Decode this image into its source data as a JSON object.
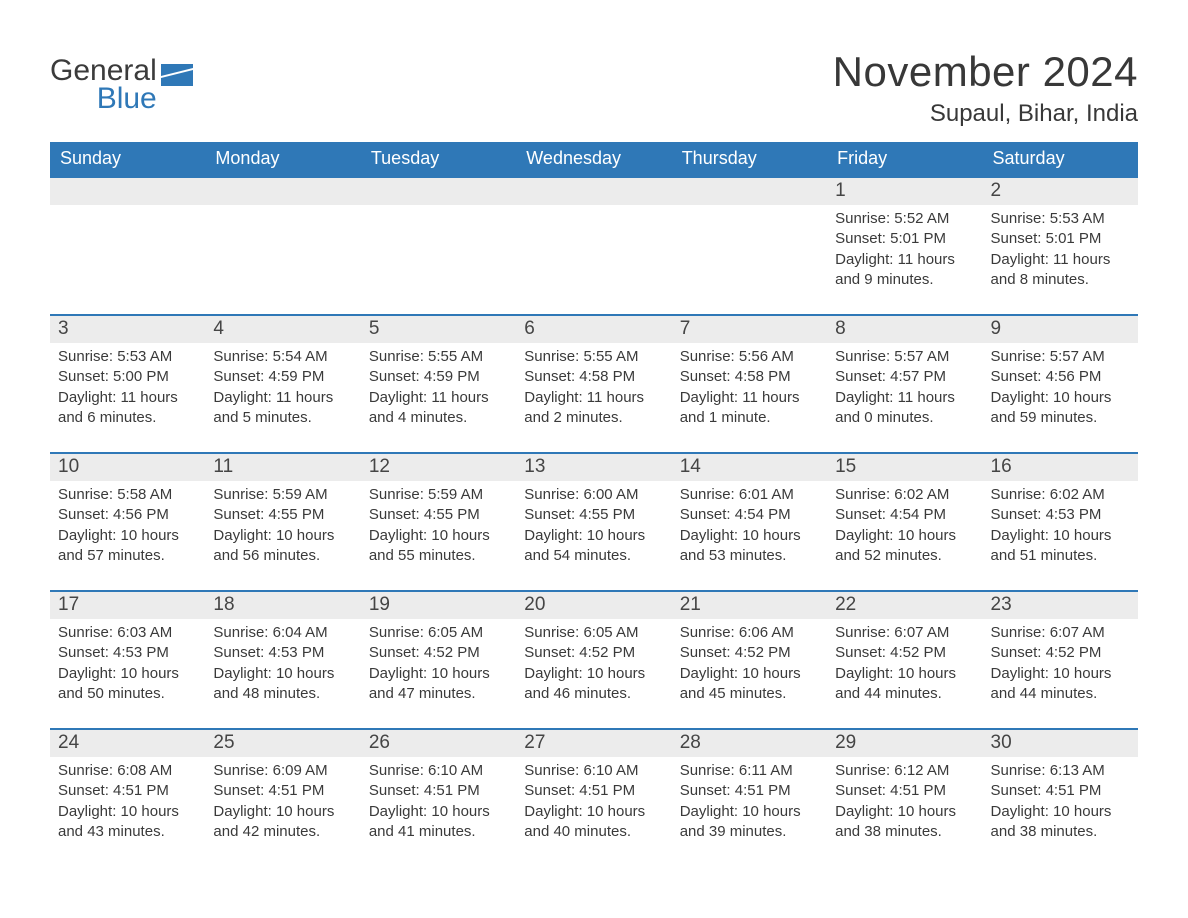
{
  "logo": {
    "word1": "General",
    "word2": "Blue"
  },
  "title": "November 2024",
  "location": "Supaul, Bihar, India",
  "colors": {
    "header_bg": "#2f78b7",
    "header_text": "#ffffff",
    "daybar_bg": "#ececec",
    "daybar_border": "#2f78b7",
    "text": "#3a3a3a",
    "logo_gray": "#3b3b3b",
    "logo_blue": "#2f78b7",
    "page_bg": "#ffffff"
  },
  "weekdays": [
    "Sunday",
    "Monday",
    "Tuesday",
    "Wednesday",
    "Thursday",
    "Friday",
    "Saturday"
  ],
  "weeks": [
    [
      null,
      null,
      null,
      null,
      null,
      {
        "n": "1",
        "sunrise": "5:52 AM",
        "sunset": "5:01 PM",
        "dl1": "Daylight: 11 hours",
        "dl2": "and 9 minutes."
      },
      {
        "n": "2",
        "sunrise": "5:53 AM",
        "sunset": "5:01 PM",
        "dl1": "Daylight: 11 hours",
        "dl2": "and 8 minutes."
      }
    ],
    [
      {
        "n": "3",
        "sunrise": "5:53 AM",
        "sunset": "5:00 PM",
        "dl1": "Daylight: 11 hours",
        "dl2": "and 6 minutes."
      },
      {
        "n": "4",
        "sunrise": "5:54 AM",
        "sunset": "4:59 PM",
        "dl1": "Daylight: 11 hours",
        "dl2": "and 5 minutes."
      },
      {
        "n": "5",
        "sunrise": "5:55 AM",
        "sunset": "4:59 PM",
        "dl1": "Daylight: 11 hours",
        "dl2": "and 4 minutes."
      },
      {
        "n": "6",
        "sunrise": "5:55 AM",
        "sunset": "4:58 PM",
        "dl1": "Daylight: 11 hours",
        "dl2": "and 2 minutes."
      },
      {
        "n": "7",
        "sunrise": "5:56 AM",
        "sunset": "4:58 PM",
        "dl1": "Daylight: 11 hours",
        "dl2": "and 1 minute."
      },
      {
        "n": "8",
        "sunrise": "5:57 AM",
        "sunset": "4:57 PM",
        "dl1": "Daylight: 11 hours",
        "dl2": "and 0 minutes."
      },
      {
        "n": "9",
        "sunrise": "5:57 AM",
        "sunset": "4:56 PM",
        "dl1": "Daylight: 10 hours",
        "dl2": "and 59 minutes."
      }
    ],
    [
      {
        "n": "10",
        "sunrise": "5:58 AM",
        "sunset": "4:56 PM",
        "dl1": "Daylight: 10 hours",
        "dl2": "and 57 minutes."
      },
      {
        "n": "11",
        "sunrise": "5:59 AM",
        "sunset": "4:55 PM",
        "dl1": "Daylight: 10 hours",
        "dl2": "and 56 minutes."
      },
      {
        "n": "12",
        "sunrise": "5:59 AM",
        "sunset": "4:55 PM",
        "dl1": "Daylight: 10 hours",
        "dl2": "and 55 minutes."
      },
      {
        "n": "13",
        "sunrise": "6:00 AM",
        "sunset": "4:55 PM",
        "dl1": "Daylight: 10 hours",
        "dl2": "and 54 minutes."
      },
      {
        "n": "14",
        "sunrise": "6:01 AM",
        "sunset": "4:54 PM",
        "dl1": "Daylight: 10 hours",
        "dl2": "and 53 minutes."
      },
      {
        "n": "15",
        "sunrise": "6:02 AM",
        "sunset": "4:54 PM",
        "dl1": "Daylight: 10 hours",
        "dl2": "and 52 minutes."
      },
      {
        "n": "16",
        "sunrise": "6:02 AM",
        "sunset": "4:53 PM",
        "dl1": "Daylight: 10 hours",
        "dl2": "and 51 minutes."
      }
    ],
    [
      {
        "n": "17",
        "sunrise": "6:03 AM",
        "sunset": "4:53 PM",
        "dl1": "Daylight: 10 hours",
        "dl2": "and 50 minutes."
      },
      {
        "n": "18",
        "sunrise": "6:04 AM",
        "sunset": "4:53 PM",
        "dl1": "Daylight: 10 hours",
        "dl2": "and 48 minutes."
      },
      {
        "n": "19",
        "sunrise": "6:05 AM",
        "sunset": "4:52 PM",
        "dl1": "Daylight: 10 hours",
        "dl2": "and 47 minutes."
      },
      {
        "n": "20",
        "sunrise": "6:05 AM",
        "sunset": "4:52 PM",
        "dl1": "Daylight: 10 hours",
        "dl2": "and 46 minutes."
      },
      {
        "n": "21",
        "sunrise": "6:06 AM",
        "sunset": "4:52 PM",
        "dl1": "Daylight: 10 hours",
        "dl2": "and 45 minutes."
      },
      {
        "n": "22",
        "sunrise": "6:07 AM",
        "sunset": "4:52 PM",
        "dl1": "Daylight: 10 hours",
        "dl2": "and 44 minutes."
      },
      {
        "n": "23",
        "sunrise": "6:07 AM",
        "sunset": "4:52 PM",
        "dl1": "Daylight: 10 hours",
        "dl2": "and 44 minutes."
      }
    ],
    [
      {
        "n": "24",
        "sunrise": "6:08 AM",
        "sunset": "4:51 PM",
        "dl1": "Daylight: 10 hours",
        "dl2": "and 43 minutes."
      },
      {
        "n": "25",
        "sunrise": "6:09 AM",
        "sunset": "4:51 PM",
        "dl1": "Daylight: 10 hours",
        "dl2": "and 42 minutes."
      },
      {
        "n": "26",
        "sunrise": "6:10 AM",
        "sunset": "4:51 PM",
        "dl1": "Daylight: 10 hours",
        "dl2": "and 41 minutes."
      },
      {
        "n": "27",
        "sunrise": "6:10 AM",
        "sunset": "4:51 PM",
        "dl1": "Daylight: 10 hours",
        "dl2": "and 40 minutes."
      },
      {
        "n": "28",
        "sunrise": "6:11 AM",
        "sunset": "4:51 PM",
        "dl1": "Daylight: 10 hours",
        "dl2": "and 39 minutes."
      },
      {
        "n": "29",
        "sunrise": "6:12 AM",
        "sunset": "4:51 PM",
        "dl1": "Daylight: 10 hours",
        "dl2": "and 38 minutes."
      },
      {
        "n": "30",
        "sunrise": "6:13 AM",
        "sunset": "4:51 PM",
        "dl1": "Daylight: 10 hours",
        "dl2": "and 38 minutes."
      }
    ]
  ],
  "labels": {
    "sunrise_prefix": "Sunrise: ",
    "sunset_prefix": "Sunset: "
  }
}
